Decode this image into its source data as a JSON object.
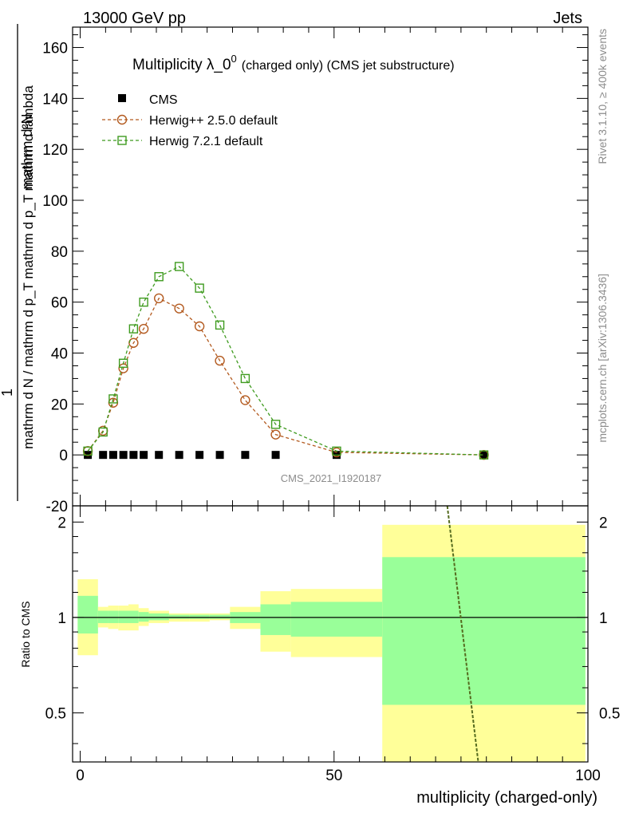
{
  "header": {
    "energy_label": "13000 GeV pp",
    "category_label": "Jets"
  },
  "side_labels": {
    "rivet": "Rivet 3.1.10, ≥ 400k events",
    "mcplots": "mcplots.cern.ch [arXiv:1306.3436]"
  },
  "plot_title": {
    "main": "Multiplicity λ_0",
    "superscript": "0",
    "suffix": "(charged only) (CMS jet substructure)"
  },
  "analysis_id": "CMS_2021_I1920187",
  "colors": {
    "cms": "#000000",
    "herwig25": "#b35a1f",
    "herwig72": "#3f9b1f",
    "band_yellow": "#ffff99",
    "band_green": "#99ff99",
    "ratio_line": "#556b1f"
  },
  "chart_data": {
    "type": "scatter",
    "xlabel": "multiplicity (charged-only)",
    "ylabel": {
      "numerator": "1",
      "denominator": "mathrm d N / mathrm d p_T mathrm d p_T mathrm d lambda",
      "top_numerator": "mathrm d²N"
    },
    "xlim": [
      -1.5,
      100
    ],
    "ylim": [
      -20,
      168
    ],
    "xticks": [
      0,
      50,
      100
    ],
    "yticks": [
      -20,
      0,
      20,
      40,
      60,
      80,
      100,
      120,
      140,
      160
    ],
    "legend": {
      "placement": "top-left",
      "entries": [
        "CMS",
        "Herwig++ 2.5.0 default",
        "Herwig 7.2.1 default"
      ]
    },
    "series": [
      {
        "name": "CMS",
        "marker": "filled-square",
        "x": [
          1.5,
          4.5,
          6.5,
          8.5,
          10.5,
          12.5,
          15.5,
          19.5,
          23.5,
          27.5,
          32.5,
          38.5,
          50.5,
          79.5
        ],
        "y": [
          0,
          0,
          0,
          0,
          0,
          0,
          0,
          0,
          0,
          0,
          0,
          0,
          0,
          0
        ]
      },
      {
        "name": "Herwig++ 2.5.0 default",
        "marker": "open-circle",
        "x": [
          1.5,
          4.5,
          6.5,
          8.5,
          10.5,
          12.5,
          15.5,
          19.5,
          23.5,
          27.5,
          32.5,
          38.5,
          50.5,
          79.5
        ],
        "y": [
          1.5,
          9.5,
          20.5,
          34.0,
          44.0,
          49.5,
          61.5,
          57.5,
          50.5,
          37.0,
          21.5,
          8.0,
          1.0,
          0.0
        ]
      },
      {
        "name": "Herwig 7.2.1 default",
        "marker": "open-square",
        "x": [
          1.5,
          4.5,
          6.5,
          8.5,
          10.5,
          12.5,
          15.5,
          19.5,
          23.5,
          27.5,
          32.5,
          38.5,
          50.5,
          79.5
        ],
        "y": [
          1.5,
          9.0,
          22.0,
          36.0,
          49.5,
          60.0,
          70.0,
          74.0,
          65.5,
          51.0,
          30.0,
          12.0,
          1.5,
          0.0
        ]
      }
    ],
    "ratio": {
      "ylabel": "Ratio to CMS",
      "ylim": [
        0.35,
        2.25
      ],
      "yticks": [
        0.5,
        1,
        2
      ],
      "reference": 1,
      "bands": [
        {
          "x0": -0.5,
          "x1": 3.5,
          "green": [
            0.89,
            1.17
          ],
          "yellow": [
            0.76,
            1.32
          ]
        },
        {
          "x0": 3.5,
          "x1": 5.5,
          "green": [
            0.96,
            1.05
          ],
          "yellow": [
            0.93,
            1.08
          ]
        },
        {
          "x0": 5.5,
          "x1": 7.5,
          "green": [
            0.96,
            1.05
          ],
          "yellow": [
            0.92,
            1.09
          ]
        },
        {
          "x0": 7.5,
          "x1": 9.5,
          "green": [
            0.96,
            1.05
          ],
          "yellow": [
            0.91,
            1.09
          ]
        },
        {
          "x0": 9.5,
          "x1": 11.5,
          "green": [
            0.96,
            1.05
          ],
          "yellow": [
            0.91,
            1.1
          ]
        },
        {
          "x0": 11.5,
          "x1": 13.5,
          "green": [
            0.97,
            1.04
          ],
          "yellow": [
            0.94,
            1.07
          ]
        },
        {
          "x0": 13.5,
          "x1": 17.5,
          "green": [
            0.98,
            1.03
          ],
          "yellow": [
            0.96,
            1.05
          ]
        },
        {
          "x0": 17.5,
          "x1": 21.5,
          "green": [
            0.99,
            1.02
          ],
          "yellow": [
            0.97,
            1.03
          ]
        },
        {
          "x0": 21.5,
          "x1": 25.5,
          "green": [
            0.99,
            1.02
          ],
          "yellow": [
            0.97,
            1.03
          ]
        },
        {
          "x0": 25.5,
          "x1": 29.5,
          "green": [
            0.99,
            1.02
          ],
          "yellow": [
            0.98,
            1.03
          ]
        },
        {
          "x0": 29.5,
          "x1": 35.5,
          "green": [
            0.96,
            1.04
          ],
          "yellow": [
            0.92,
            1.08
          ]
        },
        {
          "x0": 35.5,
          "x1": 41.5,
          "green": [
            0.88,
            1.1
          ],
          "yellow": [
            0.78,
            1.21
          ]
        },
        {
          "x0": 41.5,
          "x1": 59.5,
          "green": [
            0.87,
            1.12
          ],
          "yellow": [
            0.75,
            1.23
          ]
        },
        {
          "x0": 59.5,
          "x1": 99.5,
          "green": [
            0.53,
            1.55
          ],
          "yellow": [
            0.35,
            1.96
          ]
        }
      ],
      "model_line": {
        "x": [
          72.3,
          78.4
        ],
        "y": [
          2.25,
          0.35
        ]
      }
    }
  }
}
